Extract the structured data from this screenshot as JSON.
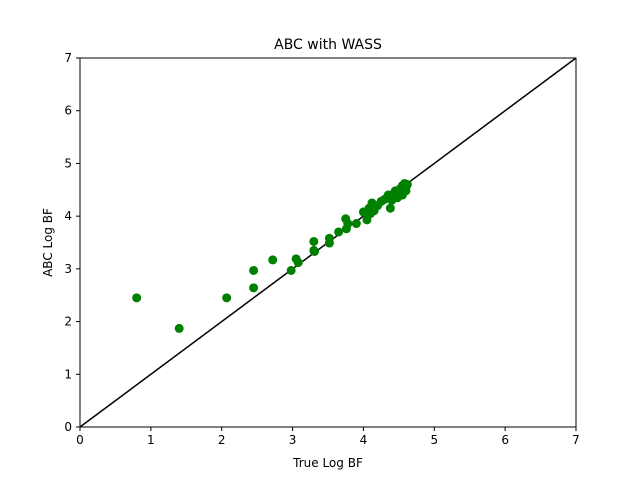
{
  "chart_data": {
    "type": "scatter",
    "title": "ABC with WASS",
    "xlabel": "True Log BF",
    "ylabel": "ABC Log BF",
    "xlim": [
      0,
      7
    ],
    "ylim": [
      0,
      7
    ],
    "xticks": [
      "0",
      "1",
      "2",
      "3",
      "4",
      "5",
      "6",
      "7"
    ],
    "yticks": [
      "0",
      "1",
      "2",
      "3",
      "4",
      "5",
      "6",
      "7"
    ],
    "grid": false,
    "reference_line": {
      "from": [
        0,
        0
      ],
      "to": [
        7,
        7
      ],
      "color": "#000000"
    },
    "series": [
      {
        "color": "#008000",
        "points": [
          [
            0.8,
            2.45
          ],
          [
            1.4,
            1.87
          ],
          [
            2.07,
            2.45
          ],
          [
            2.45,
            2.97
          ],
          [
            2.45,
            2.64
          ],
          [
            2.72,
            3.17
          ],
          [
            2.98,
            2.97
          ],
          [
            3.05,
            3.19
          ],
          [
            3.08,
            3.12
          ],
          [
            3.3,
            3.52
          ],
          [
            3.3,
            3.35
          ],
          [
            3.31,
            3.33
          ],
          [
            3.52,
            3.49
          ],
          [
            3.52,
            3.58
          ],
          [
            3.65,
            3.7
          ],
          [
            3.75,
            3.95
          ],
          [
            3.76,
            3.76
          ],
          [
            3.78,
            3.86
          ],
          [
            3.9,
            3.86
          ],
          [
            4.0,
            4.08
          ],
          [
            4.05,
            3.93
          ],
          [
            4.08,
            4.15
          ],
          [
            4.1,
            4.05
          ],
          [
            4.12,
            4.25
          ],
          [
            4.15,
            4.1
          ],
          [
            4.2,
            4.2
          ],
          [
            4.25,
            4.28
          ],
          [
            4.3,
            4.32
          ],
          [
            4.35,
            4.4
          ],
          [
            4.38,
            4.15
          ],
          [
            4.4,
            4.3
          ],
          [
            4.42,
            4.42
          ],
          [
            4.45,
            4.48
          ],
          [
            4.48,
            4.35
          ],
          [
            4.5,
            4.45
          ],
          [
            4.52,
            4.52
          ],
          [
            4.55,
            4.4
          ],
          [
            4.55,
            4.58
          ],
          [
            4.58,
            4.5
          ],
          [
            4.6,
            4.55
          ],
          [
            4.6,
            4.48
          ],
          [
            4.62,
            4.6
          ],
          [
            4.58,
            4.62
          ],
          [
            4.55,
            4.5
          ],
          [
            4.5,
            4.38
          ]
        ]
      }
    ]
  }
}
